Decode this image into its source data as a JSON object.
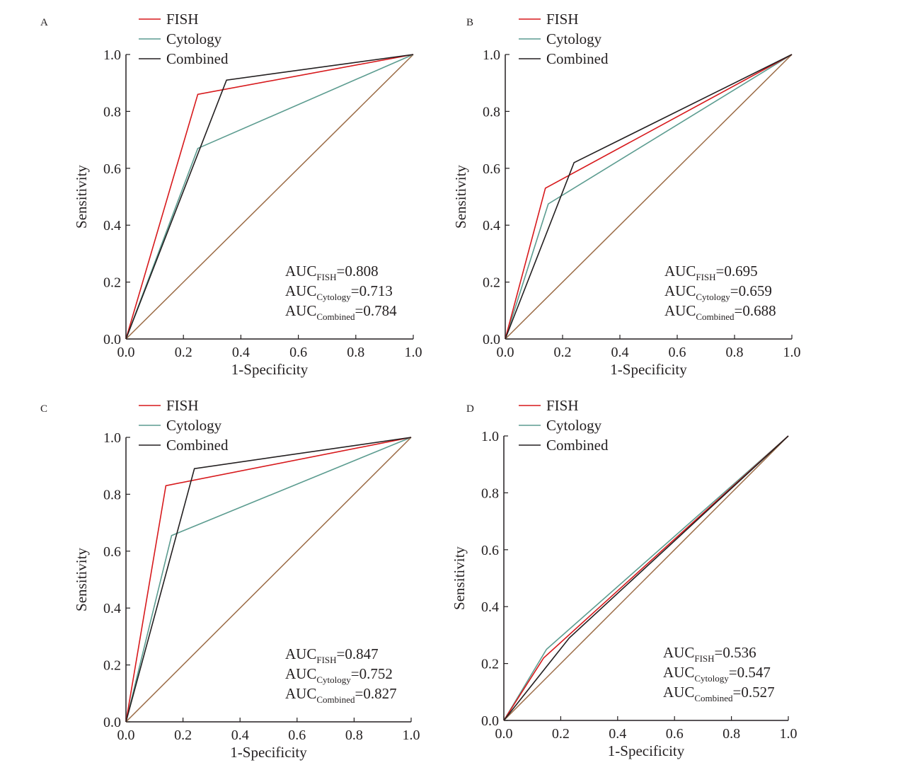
{
  "colors": {
    "FISH": "#d7191c",
    "Cytology": "#5c9c90",
    "Combined": "#231f20",
    "reference": "#9b6b45",
    "axis": "#231f20"
  },
  "chart_data": [
    {
      "panel": "A",
      "type": "line",
      "xlabel": "1-Specificity",
      "ylabel": "Sensitivity",
      "xlim": [
        0,
        1
      ],
      "ylim": [
        0,
        1
      ],
      "xticks": [
        "0.0",
        "0.2",
        "0.4",
        "0.6",
        "0.8",
        "1.0"
      ],
      "yticks": [
        "0.0",
        "0.2",
        "0.4",
        "0.6",
        "0.8",
        "1.0"
      ],
      "legend_position": "top-left",
      "series": [
        {
          "name": "FISH",
          "points": [
            [
              0,
              0
            ],
            [
              0.25,
              0.86
            ],
            [
              1,
              1
            ]
          ]
        },
        {
          "name": "Cytology",
          "points": [
            [
              0,
              0
            ],
            [
              0.25,
              0.67
            ],
            [
              1,
              1
            ]
          ]
        },
        {
          "name": "Combined",
          "points": [
            [
              0,
              0
            ],
            [
              0.35,
              0.91
            ],
            [
              1,
              1
            ]
          ]
        }
      ],
      "reference_line": [
        [
          0,
          0
        ],
        [
          1,
          1
        ]
      ],
      "auc": [
        {
          "base": "AUC",
          "sub": "FISH",
          "value": "=0.808"
        },
        {
          "base": "AUC",
          "sub": "Cytology",
          "value": "=0.713"
        },
        {
          "base": "AUC",
          "sub": "Combined",
          "value": "=0.784"
        }
      ]
    },
    {
      "panel": "B",
      "type": "line",
      "xlabel": "1-Specificity",
      "ylabel": "Sensitivity",
      "xlim": [
        0,
        1
      ],
      "ylim": [
        0,
        1
      ],
      "xticks": [
        "0.0",
        "0.2",
        "0.4",
        "0.6",
        "0.8",
        "1.0"
      ],
      "yticks": [
        "0.0",
        "0.2",
        "0.4",
        "0.6",
        "0.8",
        "1.0"
      ],
      "legend_position": "top-left",
      "series": [
        {
          "name": "FISH",
          "points": [
            [
              0,
              0
            ],
            [
              0.14,
              0.53
            ],
            [
              1,
              1
            ]
          ]
        },
        {
          "name": "Cytology",
          "points": [
            [
              0,
              0
            ],
            [
              0.15,
              0.475
            ],
            [
              1,
              1
            ]
          ]
        },
        {
          "name": "Combined",
          "points": [
            [
              0,
              0
            ],
            [
              0.24,
              0.62
            ],
            [
              1,
              1
            ]
          ]
        }
      ],
      "reference_line": [
        [
          0,
          0
        ],
        [
          1,
          1
        ]
      ],
      "auc": [
        {
          "base": "AUC",
          "sub": "FISH",
          "value": "=0.695"
        },
        {
          "base": "AUC",
          "sub": "Cytology",
          "value": "=0.659"
        },
        {
          "base": "AUC",
          "sub": "Combined",
          "value": "=0.688"
        }
      ]
    },
    {
      "panel": "C",
      "type": "line",
      "xlabel": "1-Specificity",
      "ylabel": "Sensitivity",
      "xlim": [
        0,
        1
      ],
      "ylim": [
        0,
        1
      ],
      "xticks": [
        "0.0",
        "0.2",
        "0.4",
        "0.6",
        "0.8",
        "1.0"
      ],
      "yticks": [
        "0.0",
        "0.2",
        "0.4",
        "0.6",
        "0.8",
        "1.0"
      ],
      "legend_position": "top-left",
      "series": [
        {
          "name": "FISH",
          "points": [
            [
              0,
              0
            ],
            [
              0.14,
              0.83
            ],
            [
              1,
              1
            ]
          ]
        },
        {
          "name": "Cytology",
          "points": [
            [
              0,
              0
            ],
            [
              0.16,
              0.655
            ],
            [
              1,
              1
            ]
          ]
        },
        {
          "name": "Combined",
          "points": [
            [
              0,
              0
            ],
            [
              0.24,
              0.89
            ],
            [
              1,
              1
            ]
          ]
        }
      ],
      "reference_line": [
        [
          0,
          0
        ],
        [
          1,
          1
        ]
      ],
      "auc": [
        {
          "base": "AUC",
          "sub": "FISH",
          "value": "=0.847"
        },
        {
          "base": "AUC",
          "sub": "Cytology",
          "value": "=0.752"
        },
        {
          "base": "AUC",
          "sub": "Combined",
          "value": "=0.827"
        }
      ]
    },
    {
      "panel": "D",
      "type": "line",
      "xlabel": "1-Specificity",
      "ylabel": "Sensitivity",
      "xlim": [
        0,
        1
      ],
      "ylim": [
        0,
        1
      ],
      "xticks": [
        "0.0",
        "0.2",
        "0.4",
        "0.6",
        "0.8",
        "1.0"
      ],
      "yticks": [
        "0.0",
        "0.2",
        "0.4",
        "0.6",
        "0.8",
        "1.0"
      ],
      "legend_position": "top-left",
      "series": [
        {
          "name": "FISH",
          "points": [
            [
              0,
              0
            ],
            [
              0.14,
              0.22
            ],
            [
              1,
              1
            ]
          ]
        },
        {
          "name": "Cytology",
          "points": [
            [
              0,
              0
            ],
            [
              0.15,
              0.25
            ],
            [
              1,
              1
            ]
          ]
        },
        {
          "name": "Combined",
          "points": [
            [
              0,
              0
            ],
            [
              0.23,
              0.29
            ],
            [
              1,
              1
            ]
          ]
        }
      ],
      "reference_line": [
        [
          0,
          0
        ],
        [
          1,
          1
        ]
      ],
      "auc": [
        {
          "base": "AUC",
          "sub": "FISH",
          "value": "=0.536"
        },
        {
          "base": "AUC",
          "sub": "Cytology",
          "value": "=0.547"
        },
        {
          "base": "AUC",
          "sub": "Combined",
          "value": "=0.527"
        }
      ]
    }
  ]
}
